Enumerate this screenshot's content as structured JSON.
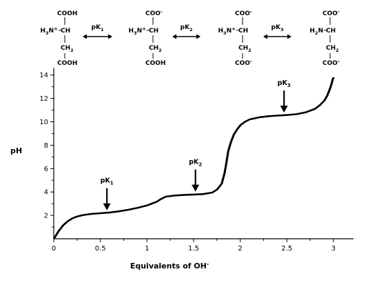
{
  "chart_data": {
    "type": "line",
    "title": "",
    "xlabel": "Equivalents of OH",
    "xlabel_superscript": "-",
    "ylabel": "pH",
    "xlim": [
      0,
      3.2
    ],
    "ylim": [
      0,
      14.5
    ],
    "xticks": [
      0,
      0.5,
      1,
      1.5,
      2,
      2.5,
      3
    ],
    "xtick_labels": [
      "0",
      "0.5",
      "1",
      "1.5",
      "2",
      "2.5",
      "3"
    ],
    "yticks": [
      2,
      4,
      6,
      8,
      10,
      12,
      14
    ],
    "ytick_labels": [
      "2",
      "4",
      "6",
      "8",
      "10",
      "12",
      "14"
    ],
    "grid": false,
    "series": [
      {
        "x": [
          0,
          0.05,
          0.1,
          0.15,
          0.2,
          0.25,
          0.3,
          0.35,
          0.4,
          0.5,
          0.6,
          0.7,
          0.8,
          0.9,
          1.0,
          1.05,
          1.1,
          1.15,
          1.2,
          1.3,
          1.4,
          1.5,
          1.6,
          1.7,
          1.75,
          1.8,
          1.83,
          1.85,
          1.87,
          1.9,
          1.93,
          1.97,
          2.0,
          2.05,
          2.1,
          2.2,
          2.3,
          2.4,
          2.5,
          2.6,
          2.7,
          2.8,
          2.85,
          2.9,
          2.93,
          2.96,
          2.98,
          2.99,
          3.0
        ],
        "y": [
          0.0,
          0.65,
          1.15,
          1.5,
          1.75,
          1.9,
          2.0,
          2.07,
          2.12,
          2.18,
          2.25,
          2.35,
          2.48,
          2.65,
          2.85,
          3.0,
          3.15,
          3.4,
          3.6,
          3.7,
          3.75,
          3.78,
          3.82,
          3.95,
          4.2,
          4.7,
          5.6,
          6.5,
          7.5,
          8.3,
          8.9,
          9.4,
          9.7,
          10.0,
          10.2,
          10.38,
          10.48,
          10.53,
          10.58,
          10.65,
          10.8,
          11.1,
          11.4,
          11.8,
          12.2,
          12.8,
          13.3,
          13.6,
          13.8
        ]
      }
    ],
    "annotations": [
      {
        "label": "pK",
        "subscript": "1",
        "x": 0.57,
        "y_tip": 2.2
      },
      {
        "label": "pK",
        "subscript": "2",
        "x": 1.52,
        "y_tip": 3.8
      },
      {
        "label": "pK",
        "subscript": "3",
        "x": 2.47,
        "y_tip": 10.55
      }
    ],
    "structures": [
      {
        "top": "COOH",
        "left": "H",
        "left_sub": "3",
        "left_main": "N",
        "left_sup": "+",
        "center": "CH",
        "mid": "CH",
        "mid_sub": "2",
        "bottom": "COOH"
      },
      {
        "top": "COO",
        "top_sup": "-",
        "left": "H",
        "left_sub": "3",
        "left_main": "N",
        "left_sup": "+",
        "center": "CH",
        "mid": "CH",
        "mid_sub": "2",
        "bottom": "COOH"
      },
      {
        "top": "COO",
        "top_sup": "-",
        "left": "H",
        "left_sub": "3",
        "left_main": "N",
        "left_sup": "+",
        "center": "CH",
        "mid": "CH",
        "mid_sub": "2",
        "bottom": "COO",
        "bottom_sup": "-"
      },
      {
        "top": "COO",
        "top_sup": "-",
        "left": "H",
        "left_sub": "2",
        "left_main": "N",
        "left_sup": "",
        "center": "CH",
        "mid": "CH",
        "mid_sub": "2",
        "bottom": "COO",
        "bottom_sup": "-"
      }
    ],
    "equilibria": [
      {
        "label": "pK",
        "subscript": "1"
      },
      {
        "label": "pK",
        "subscript": "2"
      },
      {
        "label": "pK",
        "subscript": "3"
      }
    ]
  }
}
